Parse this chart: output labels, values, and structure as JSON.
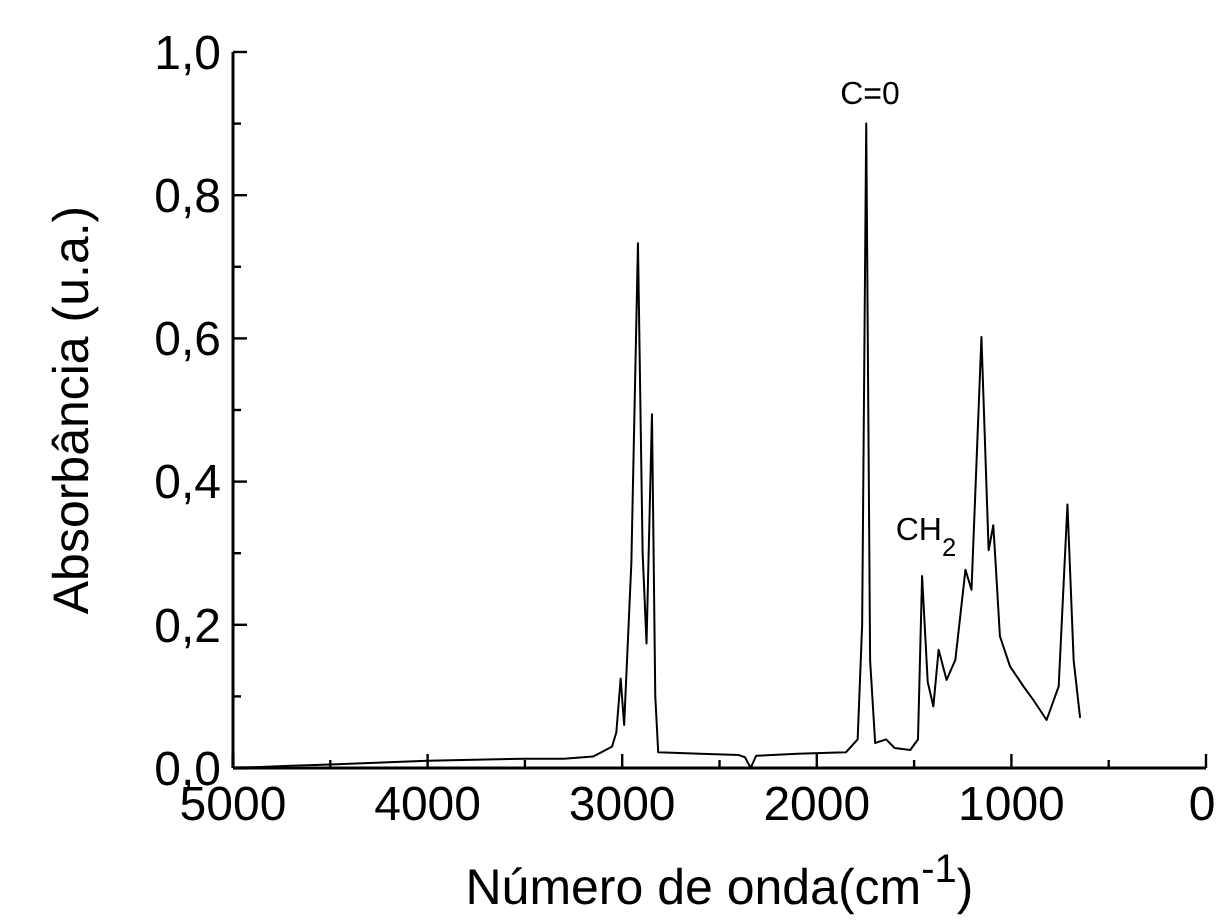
{
  "chart_data": {
    "type": "line",
    "xlabel": "Número de onda(cm$^{-1}$)",
    "ylabel": "Absorbância (u.a.)",
    "xlim": [
      5000,
      0
    ],
    "xticks": [
      5000,
      {
        "value": 4500,
        "label": null
      },
      4000,
      {
        "value": 3500,
        "label": null
      },
      3000,
      {
        "value": 2500,
        "label": null
      },
      2000,
      {
        "value": 1500,
        "label": null
      },
      1000,
      {
        "value": 500,
        "label": null
      },
      0
    ],
    "ylim": [
      0,
      1
    ],
    "yticks": [
      {
        "value": 0,
        "label": "0,0"
      },
      {
        "value": 0.1,
        "label": null
      },
      {
        "value": 0.2,
        "label": "0,2"
      },
      {
        "value": 0.3,
        "label": null
      },
      {
        "value": 0.4,
        "label": "0,4"
      },
      {
        "value": 0.5,
        "label": null
      },
      {
        "value": 0.6,
        "label": "0,6"
      },
      {
        "value": 0.7,
        "label": null
      },
      {
        "value": 0.8,
        "label": "0,8"
      },
      {
        "value": 0.9,
        "label": null
      },
      {
        "value": 1,
        "label": "1,0"
      }
    ],
    "grid": false,
    "line_style": "solid",
    "annotations": [
      "C=0",
      "CH$_{2}$"
    ],
    "series": [
      {
        "color": "#000000",
        "x": [
          5000,
          4700,
          4500,
          4200,
          4000,
          3700,
          3500,
          3300,
          3150,
          3052,
          3030,
          3008,
          2990,
          2953,
          2919,
          2895,
          2875,
          2847,
          2830,
          2815,
          2600,
          2400,
          2369,
          2340,
          2312,
          2100,
          1850,
          1790,
          1767,
          1746,
          1726,
          1700,
          1644,
          1600,
          1520,
          1480,
          1459,
          1430,
          1401,
          1374,
          1333,
          1288,
          1236,
          1205,
          1154,
          1117,
          1093,
          1082,
          1059,
          1007,
          938,
          887,
          819,
          757,
          712,
          680,
          647
        ],
        "values": [
          0.0,
          0.003,
          0.005,
          0.008,
          0.01,
          0.012,
          0.013,
          0.013,
          0.016,
          0.03,
          0.05,
          0.125,
          0.06,
          0.286,
          0.733,
          0.3,
          0.174,
          0.494,
          0.1,
          0.022,
          0.02,
          0.018,
          0.015,
          0.0,
          0.017,
          0.02,
          0.022,
          0.04,
          0.2,
          0.9,
          0.15,
          0.035,
          0.04,
          0.028,
          0.025,
          0.04,
          0.268,
          0.12,
          0.086,
          0.165,
          0.123,
          0.151,
          0.277,
          0.249,
          0.602,
          0.304,
          0.339,
          0.29,
          0.184,
          0.142,
          0.114,
          0.095,
          0.067,
          0.114,
          0.368,
          0.15,
          0.07
        ]
      }
    ]
  }
}
